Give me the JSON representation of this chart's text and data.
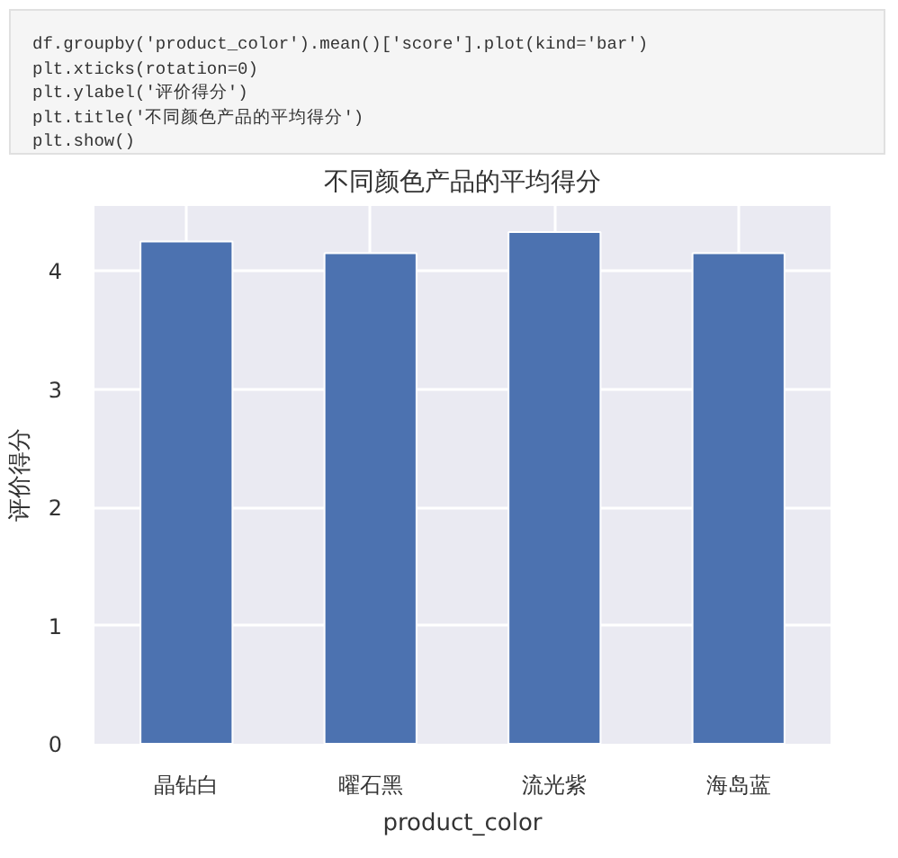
{
  "chart_data": {
    "type": "bar",
    "title": "不同颜色产品的平均得分",
    "xlabel": "product_color",
    "ylabel": "评价得分",
    "categories": [
      "晶钻白",
      "曜石黑",
      "流光紫",
      "海岛蓝"
    ],
    "values": [
      4.25,
      4.15,
      4.33,
      4.15
    ],
    "color": "#4c72b0",
    "ylim": [
      0,
      4.55
    ],
    "yticks": [
      0,
      1,
      2,
      3,
      4
    ],
    "grid": true,
    "annotations": [
      "df.groupby('product_color').mean()['score'].plot(kind='bar')",
      "plt.xticks(rotation=0)",
      "plt.ylabel('评价得分')",
      "plt.title('不同颜色产品的平均得分')",
      "plt.show()"
    ]
  }
}
